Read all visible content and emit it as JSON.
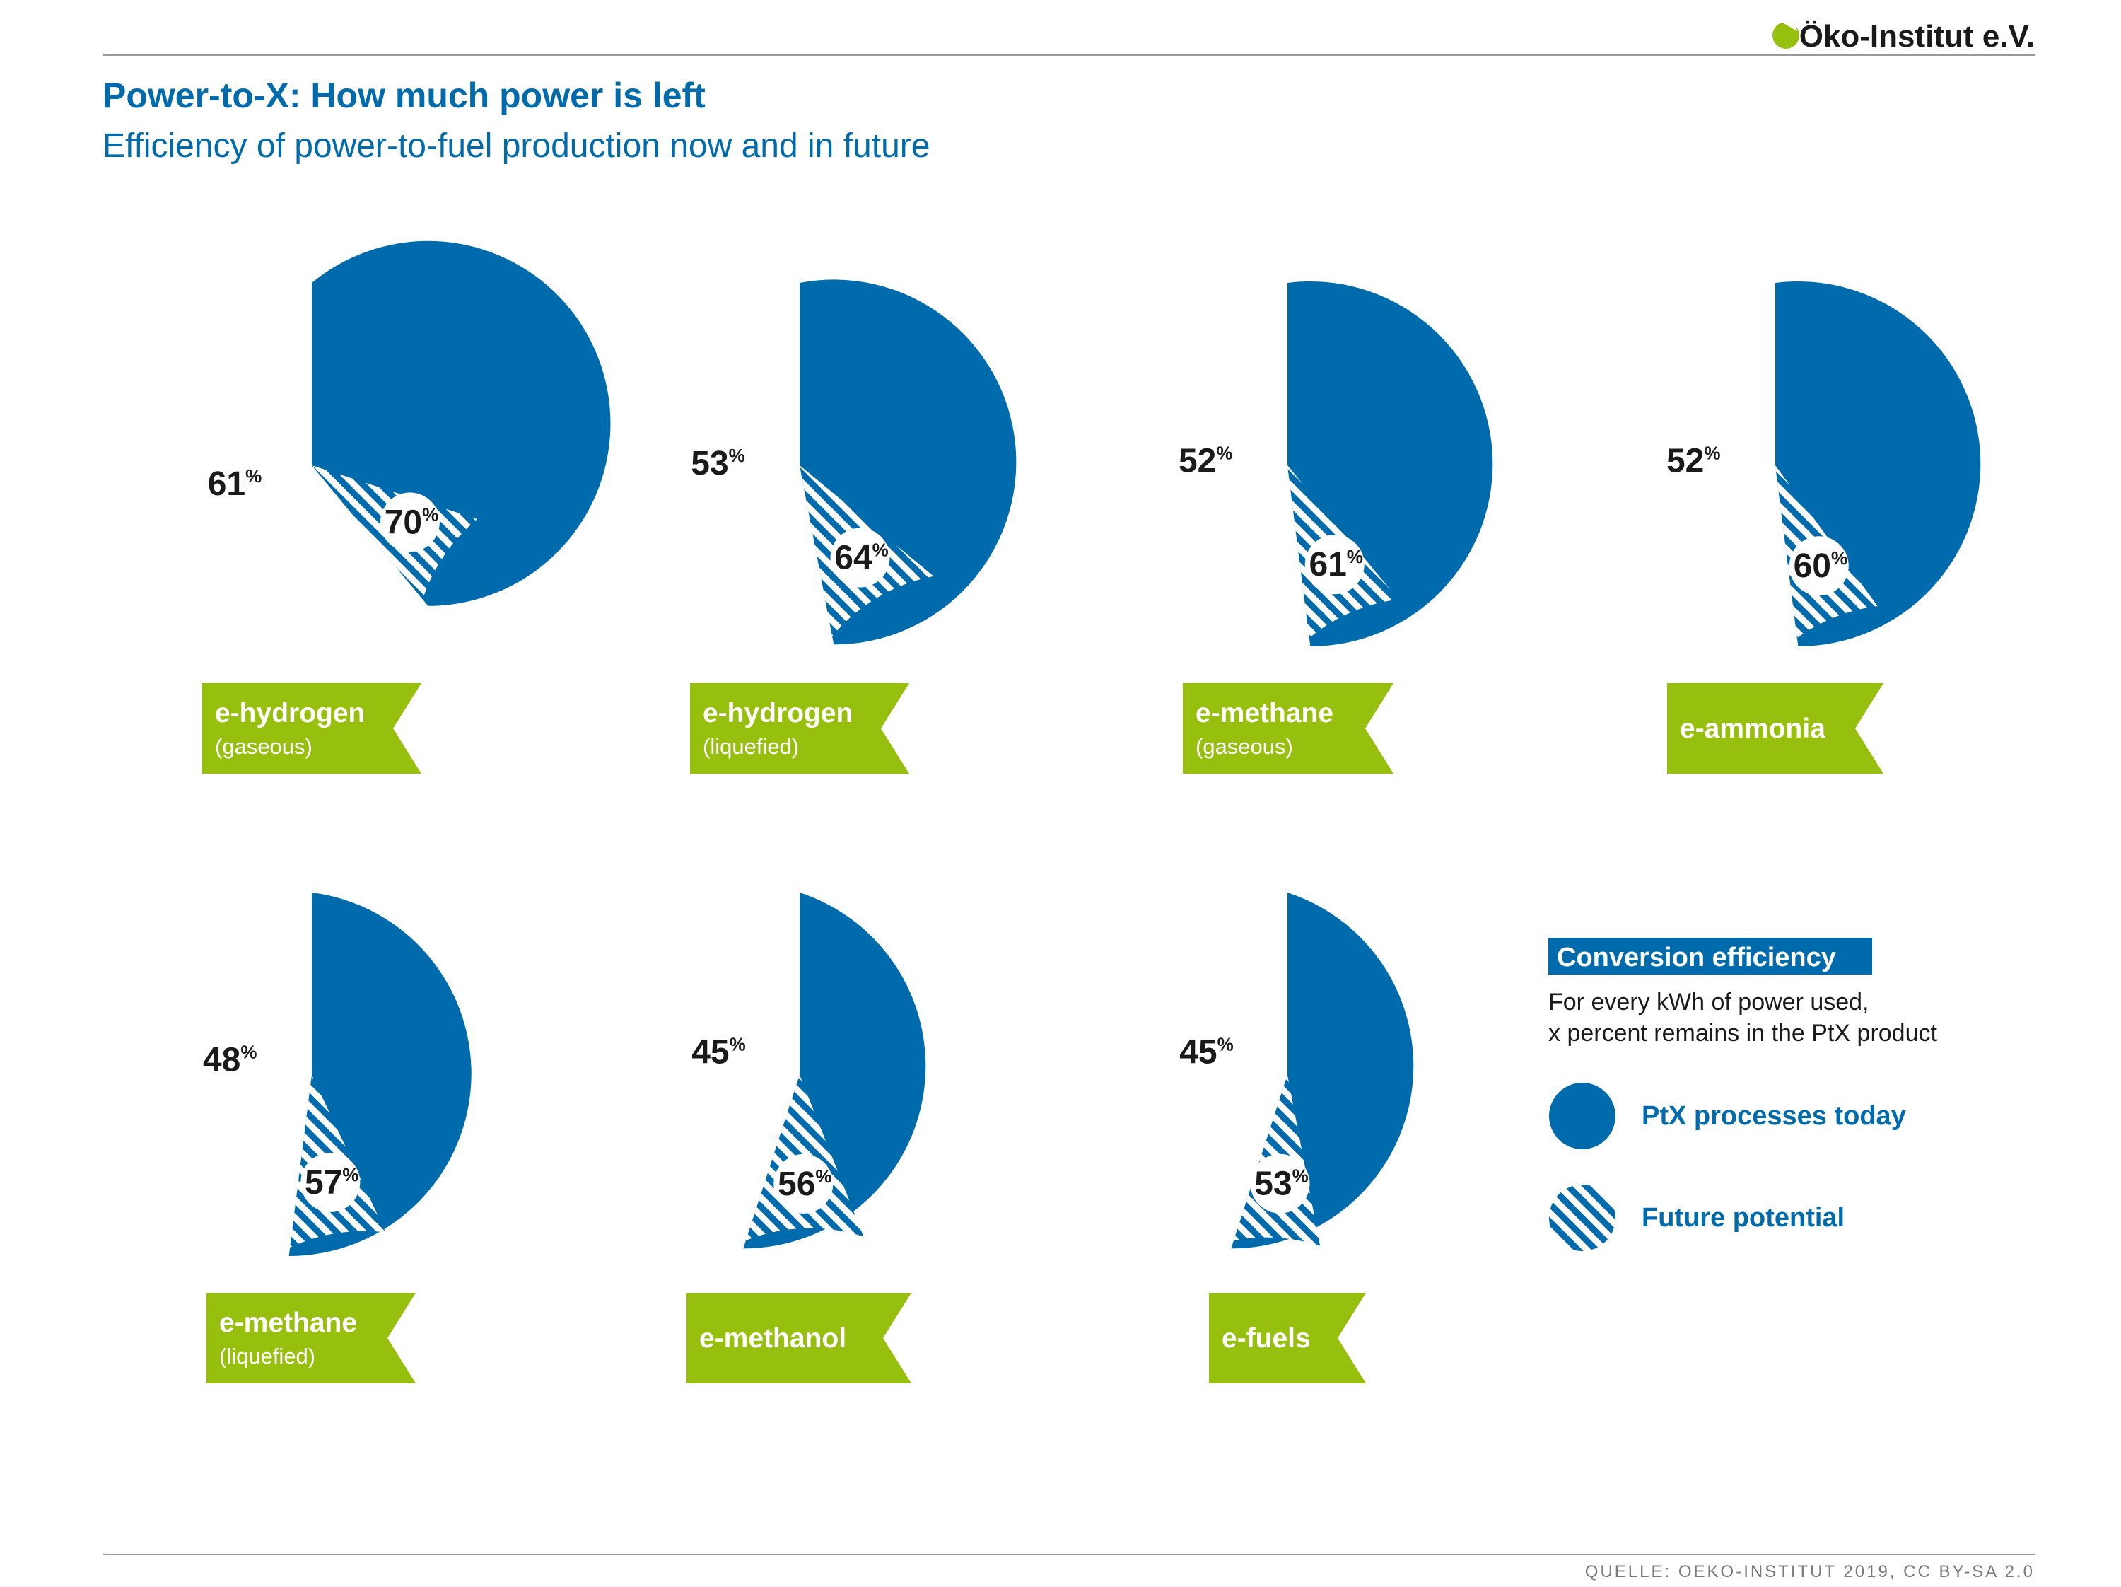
{
  "header": {
    "logo_text": "Öko-Institut e.V.",
    "title": "Power-to-X: How much power is left",
    "subtitle": "Efficiency of power-to-fuel production now and in future"
  },
  "colors": {
    "blue": "#006bac",
    "green": "#97bf0d",
    "white": "#ffffff",
    "rule": "#9a9a9a",
    "dark_text": "#1a1a1a",
    "source_text": "#7a7a7a"
  },
  "chart_data": {
    "type": "pie",
    "unit": "%",
    "series": [
      {
        "name": "PtX processes today"
      },
      {
        "name": "Future potential"
      }
    ],
    "items": [
      {
        "label": "e-hydrogen",
        "sublabel": "(gaseous)",
        "today": 61,
        "future": 70
      },
      {
        "label": "e-hydrogen",
        "sublabel": "(liquefied)",
        "today": 53,
        "future": 64
      },
      {
        "label": "e-methane",
        "sublabel": "(gaseous)",
        "today": 52,
        "future": 61
      },
      {
        "label": "e-ammonia",
        "sublabel": "",
        "today": 52,
        "future": 60
      },
      {
        "label": "e-methane",
        "sublabel": "(liquefied)",
        "today": 48,
        "future": 57
      },
      {
        "label": "e-methanol",
        "sublabel": "",
        "today": 45,
        "future": 56
      },
      {
        "label": "e-fuels",
        "sublabel": "",
        "today": 45,
        "future": 53
      }
    ]
  },
  "legend": {
    "title": "Conversion efficiency",
    "description_line1": "For every kWh of power used,",
    "description_line2": "x percent remains in the PtX product",
    "today_label": "PtX processes today",
    "future_label": "Future potential"
  },
  "footer": {
    "source": "QUELLE: OEKO-INSTITUT 2019, CC BY-SA 2.0"
  }
}
